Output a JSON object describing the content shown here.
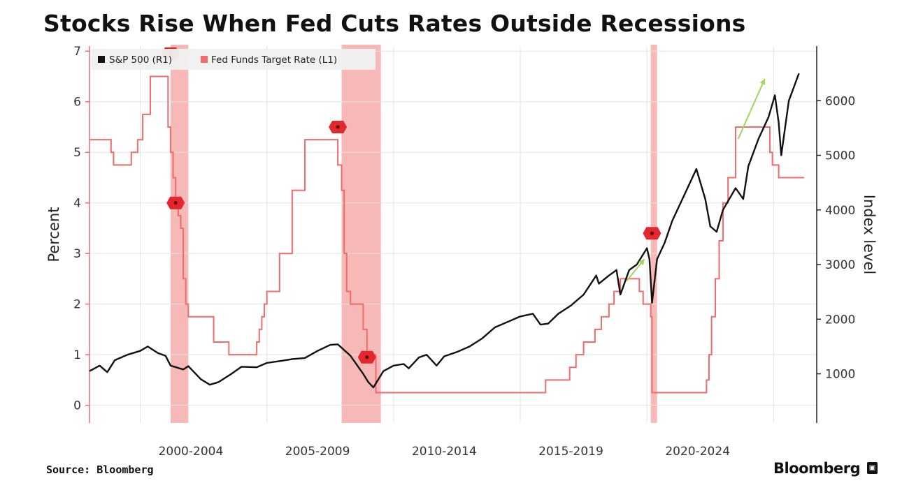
{
  "title": "Stocks Rise When Fed Cuts Rates Outside Recessions",
  "source": "Source: Bloomberg",
  "brand": "Bloomberg",
  "colors": {
    "sp500": "#111111",
    "fed": "#f26b6b",
    "recession": "#f4a0a0",
    "marker": "#e2282d",
    "arrow": "#9fd65c",
    "grid": "#e3e3e3"
  },
  "chart_data": {
    "type": "line",
    "xlim": [
      1998.0,
      2026.7
    ],
    "x_tick_labels": [
      "2000-2004",
      "2005-2009",
      "2010-2014",
      "2015-2019",
      "2020-2024"
    ],
    "x_tick_label_centers": [
      2002,
      2007,
      2012,
      2017,
      2022
    ],
    "x_gridlines": [
      2000,
      2005,
      2010,
      2015,
      2020,
      2025
    ],
    "left_axis": {
      "label": "Percent",
      "ylim": [
        -0.35,
        7.1
      ],
      "ticks": [
        0,
        1,
        2,
        3,
        4,
        5,
        6,
        7
      ]
    },
    "right_axis": {
      "label": "Index level",
      "ylim": [
        100,
        7000
      ],
      "ticks": [
        1000,
        2000,
        3000,
        4000,
        5000,
        6000
      ]
    },
    "legend": {
      "placement": "top-left",
      "entries": [
        "S&P 500 (R1)",
        "Fed Funds Target Rate (L1)"
      ]
    },
    "recessions": [
      [
        2001.2,
        2001.9
      ],
      [
        2007.95,
        2009.5
      ],
      [
        2020.15,
        2020.4
      ]
    ],
    "series": [
      {
        "name": "Fed Funds Target Rate (L1)",
        "axis": "left",
        "x": [
          1998.0,
          1998.75,
          1998.85,
          1998.95,
          1999.5,
          1999.65,
          1999.9,
          2000.1,
          2000.4,
          2001.0,
          2001.1,
          2001.2,
          2001.3,
          2001.4,
          2001.5,
          2001.6,
          2001.7,
          2001.8,
          2001.9,
          2001.95,
          2002.9,
          2003.5,
          2004.5,
          2004.6,
          2004.7,
          2004.8,
          2004.9,
          2005.0,
          2005.5,
          2006.0,
          2006.5,
          2007.7,
          2007.8,
          2007.95,
          2008.05,
          2008.15,
          2008.3,
          2008.8,
          2008.95,
          2009.3,
          2010.0,
          2015.95,
          2016.0,
          2016.95,
          2017.2,
          2017.5,
          2017.95,
          2018.2,
          2018.5,
          2018.7,
          2018.95,
          2019.55,
          2019.7,
          2019.85,
          2020.15,
          2020.2,
          2022.2,
          2022.35,
          2022.45,
          2022.55,
          2022.7,
          2022.85,
          2023.0,
          2023.2,
          2023.5,
          2024.7,
          2024.85,
          2024.95,
          2025.2,
          2026.0
        ],
        "y": [
          5.25,
          5.25,
          5.0,
          4.75,
          4.75,
          5.0,
          5.25,
          5.75,
          6.5,
          6.5,
          5.5,
          5.0,
          4.5,
          4.0,
          3.75,
          3.5,
          2.5,
          2.0,
          1.75,
          1.75,
          1.25,
          1.0,
          1.0,
          1.25,
          1.5,
          1.75,
          2.0,
          2.25,
          3.0,
          4.25,
          5.25,
          5.25,
          4.75,
          4.25,
          3.0,
          2.25,
          2.0,
          1.5,
          1.0,
          0.25,
          0.25,
          0.25,
          0.5,
          0.75,
          1.0,
          1.25,
          1.5,
          1.75,
          2.0,
          2.25,
          2.5,
          2.5,
          2.25,
          2.0,
          1.75,
          0.25,
          0.25,
          0.5,
          1.0,
          1.75,
          2.5,
          3.25,
          4.0,
          4.5,
          5.5,
          5.5,
          5.0,
          4.75,
          4.5,
          4.5
        ]
      },
      {
        "name": "S&P 500 (R1)",
        "axis": "right",
        "x": [
          1998.0,
          1998.4,
          1998.7,
          1999.0,
          1999.5,
          2000.0,
          2000.3,
          2000.7,
          2001.0,
          2001.2,
          2001.7,
          2001.9,
          2002.4,
          2002.75,
          2003.1,
          2003.6,
          2004.0,
          2004.6,
          2005.0,
          2005.6,
          2006.0,
          2006.5,
          2007.0,
          2007.5,
          2007.8,
          2008.3,
          2008.8,
          2009.0,
          2009.2,
          2009.6,
          2010.0,
          2010.4,
          2010.6,
          2011.0,
          2011.3,
          2011.7,
          2012.0,
          2012.5,
          2013.0,
          2013.5,
          2014.0,
          2014.5,
          2015.0,
          2015.5,
          2015.8,
          2016.1,
          2016.5,
          2017.0,
          2017.5,
          2018.0,
          2018.1,
          2018.5,
          2018.8,
          2018.95,
          2019.3,
          2019.6,
          2020.0,
          2020.1,
          2020.2,
          2020.4,
          2020.7,
          2021.0,
          2021.5,
          2021.95,
          2022.3,
          2022.5,
          2022.75,
          2023.0,
          2023.5,
          2023.8,
          2024.0,
          2024.4,
          2024.8,
          2025.05,
          2025.2,
          2025.3,
          2025.6,
          2026.0
        ],
        "y": [
          1050,
          1150,
          1030,
          1250,
          1350,
          1420,
          1500,
          1380,
          1330,
          1150,
          1080,
          1140,
          900,
          800,
          850,
          1000,
          1130,
          1120,
          1200,
          1240,
          1270,
          1290,
          1420,
          1530,
          1540,
          1330,
          1000,
          850,
          750,
          1050,
          1150,
          1180,
          1100,
          1300,
          1350,
          1150,
          1320,
          1400,
          1500,
          1650,
          1850,
          1950,
          2050,
          2100,
          1900,
          1920,
          2100,
          2250,
          2450,
          2800,
          2650,
          2800,
          2900,
          2450,
          2900,
          3000,
          3300,
          3100,
          2300,
          3100,
          3400,
          3800,
          4300,
          4750,
          4200,
          3700,
          3600,
          4000,
          4400,
          4200,
          4800,
          5300,
          5700,
          6100,
          5600,
          5000,
          6000,
          6500
        ]
      }
    ],
    "annotations": [
      {
        "type": "cut-marker",
        "x": 2001.4,
        "axis": "left",
        "y": 4.0
      },
      {
        "type": "cut-marker",
        "x": 2007.8,
        "axis": "left",
        "y": 5.5
      },
      {
        "type": "cut-marker",
        "x": 2008.95,
        "axis": "left",
        "y": 0.95
      },
      {
        "type": "cut-marker",
        "x": 2020.2,
        "axis": "left",
        "y": 3.4
      },
      {
        "type": "cut-marker",
        "x": 2001.2,
        "axis": "left",
        "y": 6.95
      },
      {
        "type": "arrow",
        "x1": 2019.2,
        "y1": 2700,
        "x2": 2019.9,
        "y2": 3100
      },
      {
        "type": "arrow",
        "x1": 2023.6,
        "y1": 5300,
        "x2": 2024.65,
        "y2": 6400
      }
    ]
  }
}
